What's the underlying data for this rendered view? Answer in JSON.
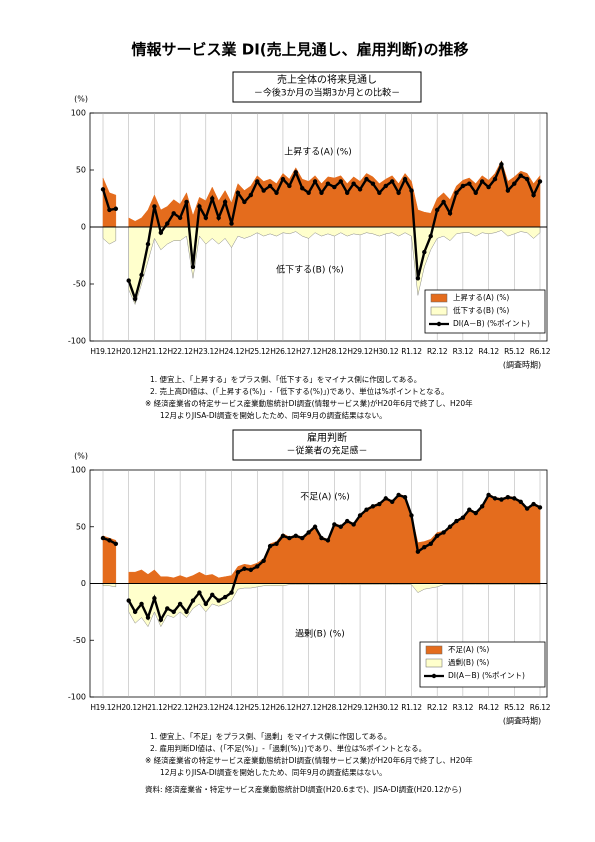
{
  "header": {
    "title": "情報サービス業 DI(売上見通し、雇用判断)の推移"
  },
  "chart_data": [
    {
      "type": "area",
      "title": "売上全体の将来見通し",
      "subtitle": "－今後3か月の当期3か月との比較－",
      "y_label": "(%)",
      "x_label": "(調査時期)",
      "annotations": [
        "上昇する(A) (%)",
        "低下する(B) (%)"
      ],
      "categories": [
        "H19.12",
        null,
        null,
        null,
        "H20.12",
        null,
        null,
        null,
        "H21.12",
        null,
        null,
        null,
        "H22.12",
        null,
        null,
        null,
        "H23.12",
        null,
        null,
        null,
        "H24.12",
        null,
        null,
        null,
        "H25.12",
        null,
        null,
        null,
        "H26.12",
        null,
        null,
        null,
        "H27.12",
        null,
        null,
        null,
        "H28.12",
        null,
        null,
        null,
        "H29.12",
        null,
        null,
        null,
        "H30.12",
        null,
        null,
        null,
        "R1.12",
        null,
        null,
        null,
        "R2.12",
        null,
        null,
        null,
        "R3.12",
        null,
        null,
        null,
        "R4.12",
        null,
        null,
        null,
        "R5.12",
        null,
        null,
        null,
        "R6.12"
      ],
      "ylim": [
        -100,
        100
      ],
      "yticks": [
        -100,
        -50,
        0,
        50,
        100
      ],
      "legend": "lower right",
      "series": [
        {
          "name": "上昇する(A) (%)",
          "style": "area",
          "color": "#E46C1D",
          "values": [
            43,
            30,
            28,
            null,
            8,
            5,
            8,
            15,
            28,
            15,
            18,
            24,
            20,
            30,
            10,
            26,
            23,
            35,
            23,
            32,
            21,
            38,
            32,
            36,
            45,
            40,
            42,
            38,
            47,
            42,
            52,
            42,
            40,
            45,
            38,
            44,
            43,
            45,
            38,
            44,
            40,
            47,
            44,
            38,
            42,
            45,
            38,
            47,
            40,
            15,
            13,
            12,
            25,
            30,
            24,
            36,
            41,
            43,
            38,
            45,
            41,
            47,
            58,
            40,
            44,
            49,
            47,
            38,
            45
          ]
        },
        {
          "name": "低下する(B) (%)",
          "style": "area",
          "color": "#FFFFCC",
          "values": [
            -10,
            -15,
            -12,
            null,
            -55,
            -68,
            -50,
            -30,
            -10,
            -20,
            -15,
            -12,
            -12,
            -8,
            -45,
            -8,
            -15,
            -10,
            -15,
            -10,
            -18,
            -8,
            -10,
            -8,
            -5,
            -8,
            -6,
            -8,
            -5,
            -6,
            -4,
            -8,
            -10,
            -5,
            -8,
            -6,
            -8,
            -5,
            -8,
            -6,
            -7,
            -5,
            -6,
            -8,
            -6,
            -5,
            -8,
            -5,
            -8,
            -60,
            -35,
            -20,
            -10,
            -8,
            -12,
            -6,
            -5,
            -5,
            -8,
            -5,
            -6,
            -5,
            -3,
            -8,
            -6,
            -4,
            -5,
            -10,
            -5
          ]
        },
        {
          "name": "DI(A－B) (%ポイント)",
          "style": "line",
          "color": "#000000",
          "values": [
            33,
            15,
            16,
            null,
            -47,
            -63,
            -42,
            -15,
            18,
            -5,
            3,
            12,
            8,
            22,
            -35,
            18,
            8,
            25,
            8,
            22,
            3,
            30,
            22,
            28,
            40,
            32,
            36,
            30,
            42,
            36,
            48,
            34,
            30,
            40,
            30,
            38,
            35,
            40,
            30,
            38,
            33,
            42,
            38,
            30,
            36,
            40,
            30,
            42,
            32,
            -45,
            -22,
            -8,
            15,
            22,
            12,
            30,
            36,
            38,
            30,
            40,
            35,
            42,
            55,
            32,
            38,
            45,
            42,
            28,
            40
          ]
        }
      ]
    },
    {
      "type": "area",
      "title": "雇用判断",
      "subtitle": "－従業者の充足感－",
      "y_label": "(%)",
      "x_label": "(調査時期)",
      "annotations": [
        "不足(A) (%)",
        "過剰(B) (%)"
      ],
      "categories": [
        "H19.12",
        null,
        null,
        null,
        "H20.12",
        null,
        null,
        null,
        "H21.12",
        null,
        null,
        null,
        "H22.12",
        null,
        null,
        null,
        "H23.12",
        null,
        null,
        null,
        "H24.12",
        null,
        null,
        null,
        "H25.12",
        null,
        null,
        null,
        "H26.12",
        null,
        null,
        null,
        "H27.12",
        null,
        null,
        null,
        "H28.12",
        null,
        null,
        null,
        "H29.12",
        null,
        null,
        null,
        "H30.12",
        null,
        null,
        null,
        "R1.12",
        null,
        null,
        null,
        "R2.12",
        null,
        null,
        null,
        "R3.12",
        null,
        null,
        null,
        "R4.12",
        null,
        null,
        null,
        "R5.12",
        null,
        null,
        null,
        "R6.12"
      ],
      "ylim": [
        -100,
        100
      ],
      "yticks": [
        -100,
        -50,
        0,
        50,
        100
      ],
      "legend": "lower right",
      "series": [
        {
          "name": "不足(A) (%)",
          "style": "area",
          "color": "#E46C1D",
          "values": [
            42,
            40,
            38,
            null,
            10,
            10,
            12,
            8,
            12,
            6,
            6,
            5,
            7,
            5,
            7,
            10,
            7,
            8,
            5,
            6,
            7,
            15,
            17,
            16,
            18,
            22,
            35,
            37,
            44,
            41,
            43,
            41,
            46,
            51,
            41,
            39,
            53,
            51,
            56,
            53,
            61,
            66,
            69,
            71,
            76,
            73,
            79,
            77,
            61,
            36,
            37,
            39,
            45,
            46,
            51,
            56,
            59,
            66,
            63,
            69,
            79,
            76,
            75,
            77,
            76,
            73,
            67,
            71,
            68
          ]
        },
        {
          "name": "過剰(B) (%)",
          "style": "area",
          "color": "#FFFFCC",
          "values": [
            -2,
            -2,
            -3,
            null,
            -25,
            -35,
            -30,
            -38,
            -25,
            -38,
            -28,
            -30,
            -25,
            -30,
            -22,
            -18,
            -25,
            -18,
            -20,
            -18,
            -15,
            -5,
            -4,
            -4,
            -3,
            -2,
            -2,
            -2,
            -2,
            -1,
            -1,
            -1,
            -1,
            -1,
            -1,
            -1,
            -1,
            -1,
            -1,
            -1,
            -1,
            -1,
            -1,
            -1,
            -1,
            -1,
            -1,
            -1,
            -1,
            -8,
            -5,
            -4,
            -3,
            -1,
            -1,
            -1,
            -1,
            -1,
            -1,
            -1,
            -1,
            -1,
            -1,
            -1,
            -1,
            -1,
            -1,
            -1,
            -1
          ]
        },
        {
          "name": "DI(A－B) (%ポイント)",
          "style": "line",
          "color": "#000000",
          "values": [
            40,
            38,
            35,
            null,
            -15,
            -25,
            -18,
            -30,
            -13,
            -32,
            -22,
            -25,
            -18,
            -25,
            -15,
            -8,
            -18,
            -10,
            -15,
            -12,
            -8,
            10,
            13,
            12,
            15,
            20,
            33,
            35,
            42,
            40,
            42,
            40,
            45,
            50,
            40,
            38,
            52,
            50,
            55,
            52,
            60,
            65,
            68,
            70,
            75,
            72,
            78,
            76,
            60,
            28,
            32,
            35,
            42,
            45,
            50,
            55,
            58,
            65,
            62,
            68,
            78,
            75,
            74,
            76,
            75,
            72,
            66,
            70,
            67
          ]
        }
      ]
    }
  ],
  "notes": [
    [
      "1. 便宜上、「上昇する」をプラス側、「低下する」をマイナス側に作図してある。",
      "2. 売上高DI値は、(「上昇する(%)」-「低下する(%)」)であり、単位は%ポイントとなる。",
      "※ 経済産業省の特定サービス産業動態統計DI調査(情報サービス業)がH20年6月で終了し、H20年",
      "12月よりJISA-DI調査を開始したため、同年9月の調査結果はない。"
    ],
    [
      "1. 便宜上、「不足」をプラス側、「過剰」をマイナス側に作図してある。",
      "2. 雇用判断DI値は、(「不足(%)」-「過剰(%)」)であり、単位は%ポイントとなる。",
      "※ 経済産業省の特定サービス産業動態統計DI調査(情報サービス業)がH20年6月で終了し、H20年",
      "12月よりJISA-DI調査を開始したため、同年9月の調査結果はない。"
    ]
  ],
  "source": "資料: 経済産業省・特定サービス産業動態統計DI調査(H20.6まで)、JISA-DI調査(H20.12から)"
}
